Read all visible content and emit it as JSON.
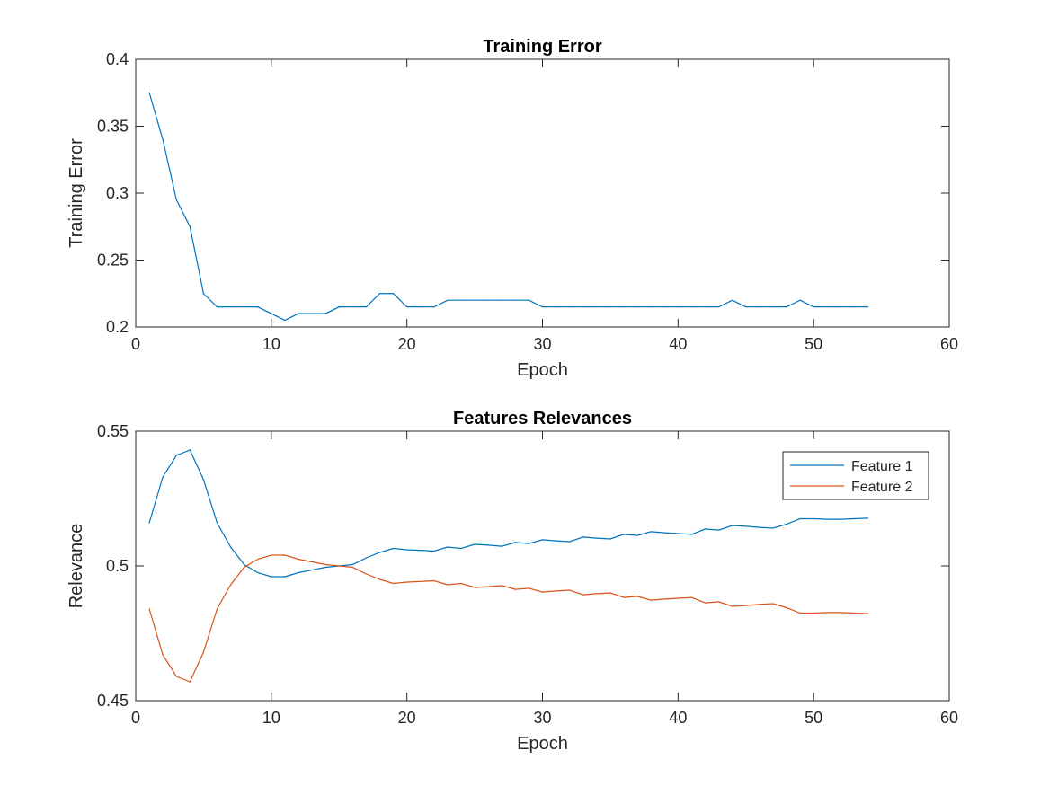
{
  "chart_data": [
    {
      "type": "line",
      "title": "Training Error",
      "xlabel": "Epoch",
      "ylabel": "Training Error",
      "xlim": [
        0,
        60
      ],
      "ylim": [
        0.2,
        0.4
      ],
      "xticks": [
        0,
        10,
        20,
        30,
        40,
        50,
        60
      ],
      "yticks": [
        0.2,
        0.25,
        0.3,
        0.35,
        0.4
      ],
      "xtick_labels": [
        "0",
        "10",
        "20",
        "30",
        "40",
        "50",
        "60"
      ],
      "ytick_labels": [
        "0.2",
        "0.25",
        "0.3",
        "0.35",
        "0.4"
      ],
      "grid": false,
      "legend": null,
      "x": [
        1,
        2,
        3,
        4,
        5,
        6,
        7,
        8,
        9,
        10,
        11,
        12,
        13,
        14,
        15,
        16,
        17,
        18,
        19,
        20,
        21,
        22,
        23,
        24,
        25,
        26,
        27,
        28,
        29,
        30,
        31,
        32,
        33,
        34,
        35,
        36,
        37,
        38,
        39,
        40,
        41,
        42,
        43,
        44,
        45,
        46,
        47,
        48,
        49,
        50,
        51,
        52,
        53,
        54
      ],
      "series": [
        {
          "color": "#0072bd",
          "values": [
            0.375,
            0.34,
            0.295,
            0.275,
            0.225,
            0.215,
            0.215,
            0.215,
            0.215,
            0.21,
            0.205,
            0.21,
            0.21,
            0.21,
            0.215,
            0.215,
            0.215,
            0.225,
            0.225,
            0.215,
            0.215,
            0.215,
            0.22,
            0.22,
            0.22,
            0.22,
            0.22,
            0.22,
            0.22,
            0.215,
            0.215,
            0.215,
            0.215,
            0.215,
            0.215,
            0.215,
            0.215,
            0.215,
            0.215,
            0.215,
            0.215,
            0.215,
            0.215,
            0.22,
            0.215,
            0.215,
            0.215,
            0.215,
            0.22,
            0.215,
            0.215,
            0.215,
            0.215,
            0.215
          ]
        }
      ]
    },
    {
      "type": "line",
      "title": "Features Relevances",
      "xlabel": "Epoch",
      "ylabel": "Relevance",
      "xlim": [
        0,
        60
      ],
      "ylim": [
        0.45,
        0.55
      ],
      "xticks": [
        0,
        10,
        20,
        30,
        40,
        50,
        60
      ],
      "yticks": [
        0.45,
        0.5,
        0.55
      ],
      "xtick_labels": [
        "0",
        "10",
        "20",
        "30",
        "40",
        "50",
        "60"
      ],
      "ytick_labels": [
        "0.45",
        "0.5",
        "0.55"
      ],
      "grid": false,
      "legend": "top-right",
      "x": [
        1,
        2,
        3,
        4,
        5,
        6,
        7,
        8,
        9,
        10,
        11,
        12,
        13,
        14,
        15,
        16,
        17,
        18,
        19,
        20,
        21,
        22,
        23,
        24,
        25,
        26,
        27,
        28,
        29,
        30,
        31,
        32,
        33,
        34,
        35,
        36,
        37,
        38,
        39,
        40,
        41,
        42,
        43,
        44,
        45,
        46,
        47,
        48,
        49,
        50,
        51,
        52,
        53,
        54
      ],
      "series": [
        {
          "name": "Feature 1",
          "color": "#0072bd",
          "values": [
            0.516,
            0.533,
            0.541,
            0.543,
            0.532,
            0.516,
            0.507,
            0.5005,
            0.4975,
            0.496,
            0.496,
            0.4975,
            0.4985,
            0.4995,
            0.5,
            0.5005,
            0.503,
            0.505,
            0.5065,
            0.506,
            0.5058,
            0.5055,
            0.507,
            0.5065,
            0.508,
            0.5077,
            0.5073,
            0.5087,
            0.5083,
            0.5097,
            0.5093,
            0.509,
            0.5107,
            0.5103,
            0.51,
            0.5117,
            0.5113,
            0.5127,
            0.5123,
            0.512,
            0.5117,
            0.5137,
            0.5133,
            0.515,
            0.5147,
            0.5143,
            0.514,
            0.5155,
            0.5175,
            0.5175,
            0.5173,
            0.5173,
            0.5175,
            0.5177
          ]
        },
        {
          "name": "Feature 2",
          "color": "#d95319",
          "values": [
            0.484,
            0.467,
            0.459,
            0.457,
            0.468,
            0.484,
            0.493,
            0.4995,
            0.5025,
            0.504,
            0.504,
            0.5025,
            0.5015,
            0.5005,
            0.5,
            0.4995,
            0.497,
            0.495,
            0.4935,
            0.494,
            0.4942,
            0.4945,
            0.493,
            0.4935,
            0.492,
            0.4923,
            0.4927,
            0.4913,
            0.4917,
            0.4903,
            0.4907,
            0.491,
            0.4893,
            0.4897,
            0.49,
            0.4883,
            0.4887,
            0.4873,
            0.4877,
            0.488,
            0.4883,
            0.4863,
            0.4867,
            0.485,
            0.4853,
            0.4857,
            0.486,
            0.4845,
            0.4825,
            0.4825,
            0.4827,
            0.4827,
            0.4825,
            0.4823
          ]
        }
      ]
    }
  ]
}
